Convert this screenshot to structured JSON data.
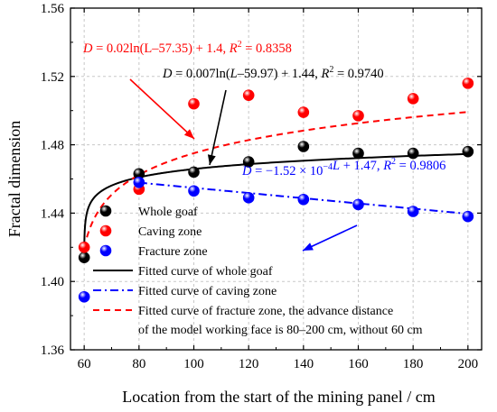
{
  "chart_data": {
    "type": "scatter",
    "xlabel": "Location from the start of the mining panel / cm",
    "ylabel": "Fractal dimension",
    "xlim": [
      55,
      205
    ],
    "ylim": [
      1.36,
      1.56
    ],
    "x_ticks": [
      60,
      80,
      100,
      120,
      140,
      160,
      180,
      200
    ],
    "y_ticks": [
      1.36,
      1.4,
      1.44,
      1.48,
      1.52,
      1.56
    ],
    "x_tick_labels": [
      "60",
      "80",
      "100",
      "120",
      "140",
      "160",
      "180",
      "200"
    ],
    "y_tick_labels": [
      "1.36",
      "1.40",
      "1.44",
      "1.48",
      "1.52",
      "1.56"
    ],
    "grid": true,
    "series": [
      {
        "name": "Whole goaf",
        "kind": "points",
        "color": "#000000",
        "x": [
          60,
          80,
          100,
          120,
          140,
          160,
          180,
          200
        ],
        "y": [
          1.414,
          1.463,
          1.464,
          1.47,
          1.479,
          1.475,
          1.475,
          1.476
        ]
      },
      {
        "name": "Caving zone",
        "kind": "points",
        "color": "#ff0000",
        "x": [
          60,
          80,
          100,
          120,
          140,
          160,
          180,
          200
        ],
        "y": [
          1.42,
          1.454,
          1.504,
          1.509,
          1.499,
          1.497,
          1.507,
          1.516
        ]
      },
      {
        "name": "Fracture zone",
        "kind": "points",
        "color": "#0000ff",
        "x": [
          60,
          80,
          100,
          120,
          140,
          160,
          180,
          200
        ],
        "y": [
          1.391,
          1.458,
          1.453,
          1.449,
          1.448,
          1.445,
          1.441,
          1.438
        ]
      },
      {
        "name": "Fitted curve of whole goaf",
        "kind": "fit",
        "color": "#000000",
        "dash": "solid",
        "equation_form": "D = 0.007*ln(L-59.97) + 1.44",
        "x_range": [
          60.0,
          200
        ]
      },
      {
        "name": "Fitted curve of caving zone",
        "kind": "fit",
        "color": "#0000ff",
        "dash": "dashdot",
        "equation_form": "D = -1.52e-4*L + 1.47",
        "x_range": [
          80,
          200
        ]
      },
      {
        "name": "Fitted curve of fracture zone, the advance distance",
        "name_line2": "of the model working face is 80–200 cm, without 60 cm",
        "kind": "fit",
        "color": "#ff0000",
        "dash": "dash",
        "equation_form": "D = 0.02*ln(L-57.35) + 1.4",
        "x_range": [
          60,
          200
        ]
      }
    ],
    "annotations": [
      {
        "color": "#ff0000",
        "prefix": "D",
        "mid": " = 0.02ln(L–57.35) + 1.4, ",
        "r": "R",
        "tail": " = 0.8358"
      },
      {
        "color": "#000000",
        "prefix": "D",
        "mid": " = 0.007ln(",
        "var": "L",
        "mid2": "–59.97) + 1.44, ",
        "r": "R",
        "tail": " = 0.9740"
      },
      {
        "color": "#0000ff",
        "prefix": "D",
        "mid": " = −1.52 × 10",
        "exp": "−4",
        "var": "L",
        "mid2": " + 1.47, ",
        "r": "R",
        "tail": " = 0.9806"
      }
    ],
    "legend_position": "bottom-left"
  }
}
